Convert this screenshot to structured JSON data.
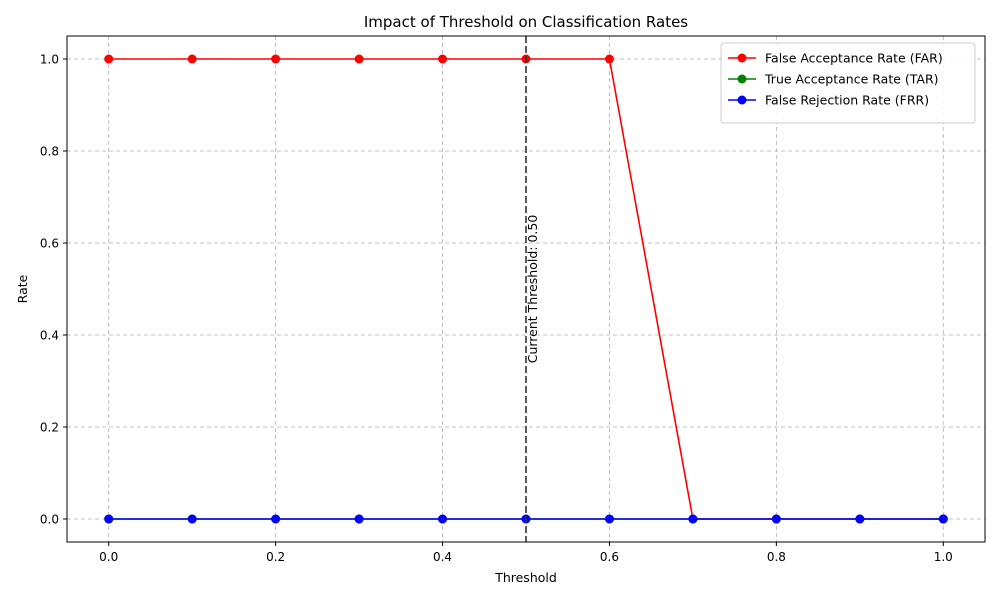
{
  "chart_data": {
    "type": "line",
    "title": "Impact of Threshold on Classification Rates",
    "xlabel": "Threshold",
    "ylabel": "Rate",
    "xlim": [
      -0.05,
      1.05
    ],
    "ylim": [
      -0.05,
      1.05
    ],
    "xticks": [
      0.0,
      0.2,
      0.4,
      0.6,
      0.8,
      1.0
    ],
    "xtick_labels": [
      "0.0",
      "0.2",
      "0.4",
      "0.6",
      "0.8",
      "1.0"
    ],
    "yticks": [
      0.0,
      0.2,
      0.4,
      0.6,
      0.8,
      1.0
    ],
    "ytick_labels": [
      "0.0",
      "0.2",
      "0.4",
      "0.6",
      "0.8",
      "1.0"
    ],
    "grid": true,
    "legend_position": "top-right",
    "x": [
      0.0,
      0.1,
      0.2,
      0.3,
      0.4,
      0.5,
      0.6,
      0.7,
      0.8,
      0.9,
      1.0
    ],
    "series": [
      {
        "name": "False Acceptance Rate (FAR)",
        "color": "#ff0000",
        "values": [
          1,
          1,
          1,
          1,
          1,
          1,
          1,
          0,
          0,
          0,
          0
        ]
      },
      {
        "name": "True Acceptance Rate (TAR)",
        "color": "#008000",
        "values": [
          0,
          0,
          0,
          0,
          0,
          0,
          0,
          0,
          0,
          0,
          0
        ]
      },
      {
        "name": "False Rejection Rate (FRR)",
        "color": "#0000ff",
        "values": [
          0,
          0,
          0,
          0,
          0,
          0,
          0,
          0,
          0,
          0,
          0
        ]
      }
    ],
    "threshold_line": {
      "x": 0.5,
      "label": "Current Threshold: 0.50",
      "color": "#333333"
    }
  }
}
